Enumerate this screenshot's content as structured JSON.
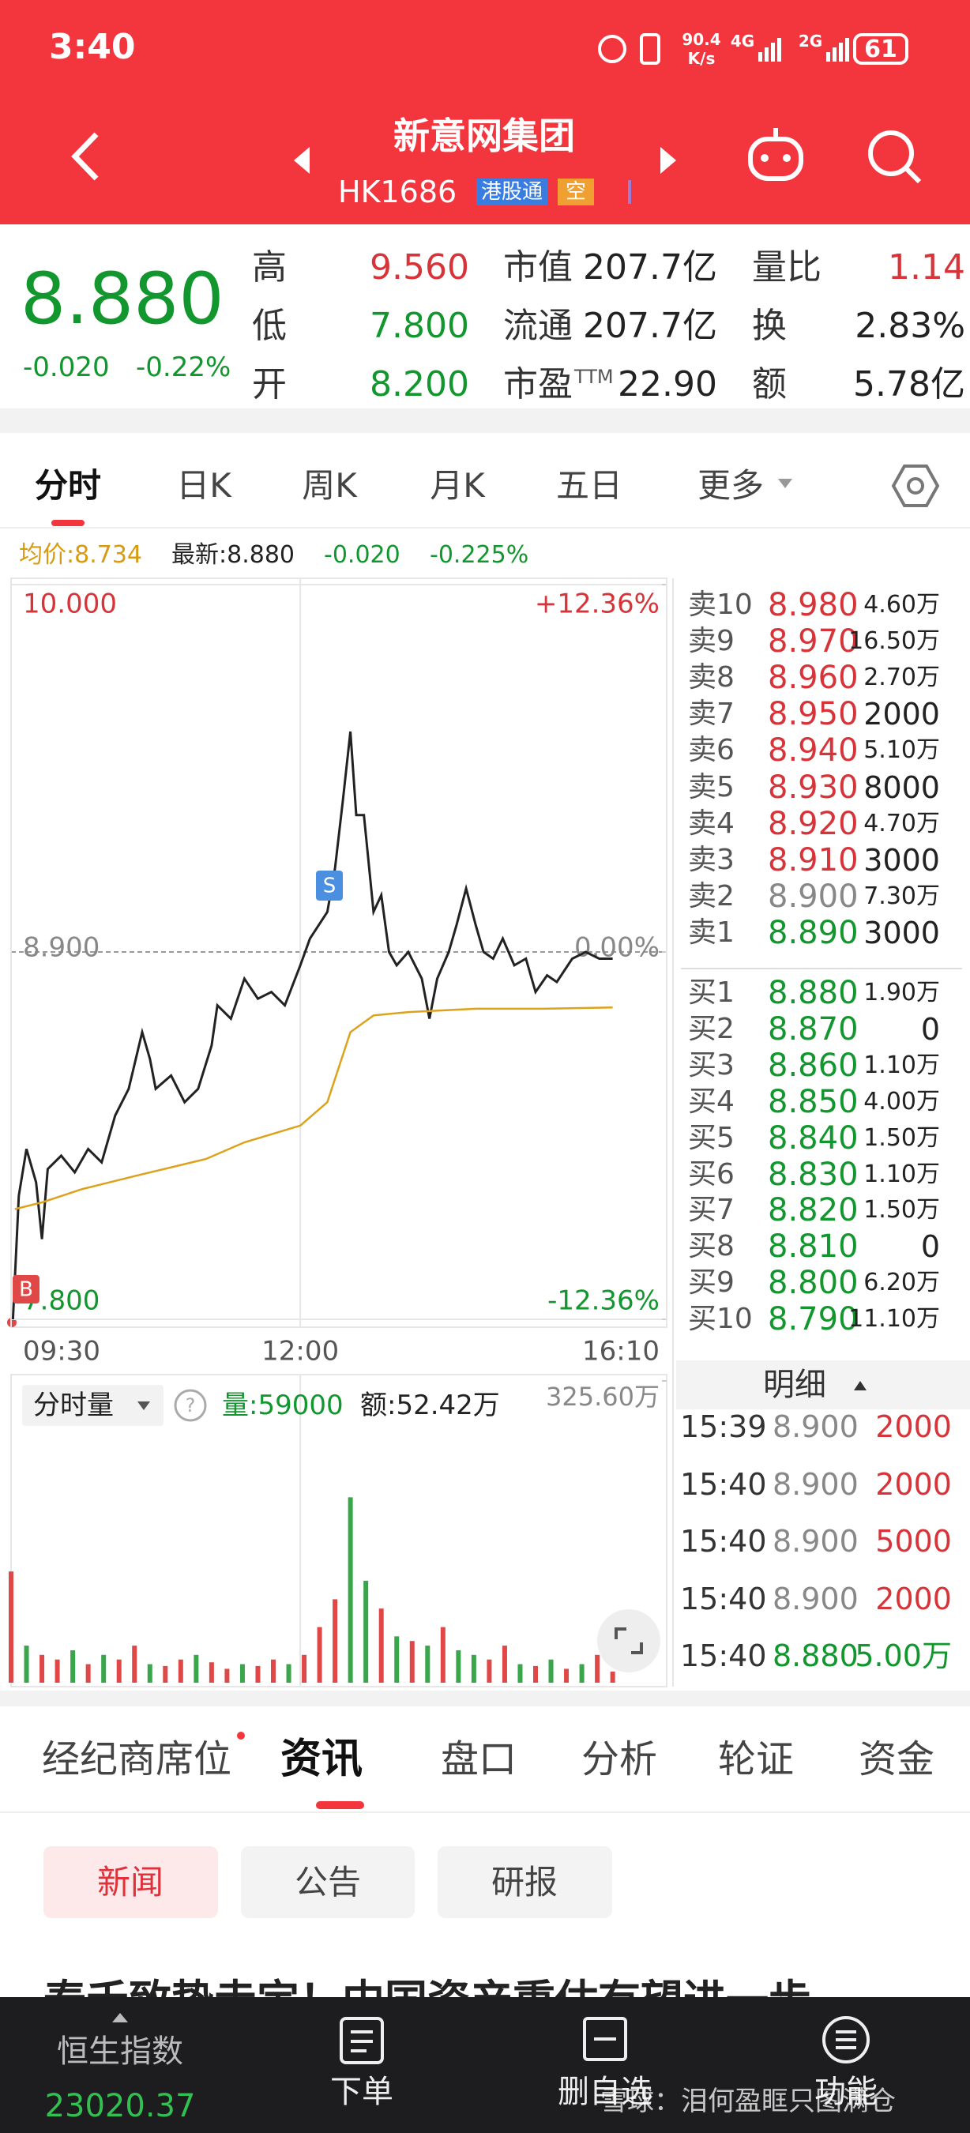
{
  "status_bar": {
    "time": "3:40",
    "net_speed": "90.4",
    "net_unit": "K/s",
    "net1": "4G",
    "net2": "2G",
    "battery": "61"
  },
  "header": {
    "title": "新意网集团",
    "code": "HK1686",
    "badges": [
      "港股通",
      "空"
    ]
  },
  "quote": {
    "price": "8.880",
    "change": "-0.020",
    "change_pct": "-0.22%",
    "stats": [
      [
        {
          "label": "高",
          "value": "9.560",
          "color": "#d7343a"
        },
        {
          "label": "市值",
          "value": "207.7亿"
        },
        {
          "label": "量比",
          "value": "1.14",
          "color": "#d7343a"
        }
      ],
      [
        {
          "label": "低",
          "value": "7.800",
          "color": "#12962e"
        },
        {
          "label": "流通",
          "value": "207.7亿"
        },
        {
          "label": "换",
          "value": "2.83%"
        }
      ],
      [
        {
          "label": "开",
          "value": "8.200",
          "color": "#12962e"
        },
        {
          "label": "市盈",
          "sup": "TTM",
          "value": "22.90"
        },
        {
          "label": "额",
          "value": "5.78亿"
        }
      ]
    ]
  },
  "chart_tabs": [
    "分时",
    "日K",
    "周K",
    "月K",
    "五日",
    "更多"
  ],
  "chart_info": {
    "avg": "均价:8.734",
    "latest": "最新:8.880",
    "change": "-0.020",
    "change_pct": "-0.225%"
  },
  "chart_data": [
    {
      "type": "line",
      "xlim": [
        0,
        340
      ],
      "xticks": [
        {
          "value": 0,
          "label": "09:30"
        },
        {
          "value": 150,
          "label": "12:00"
        },
        {
          "value": 340,
          "label": "16:10"
        }
      ],
      "ylim": [
        7.8,
        10.0
      ],
      "yticks": [
        {
          "value": 7.8,
          "label": "7.800"
        },
        {
          "value": 8.9,
          "label": "8.900"
        },
        {
          "value": 10.0,
          "label": "10.000"
        }
      ],
      "y2lim": [
        -12.36,
        12.36
      ],
      "y2ticks": [
        {
          "value": -12.36,
          "label": "-12.36%"
        },
        {
          "value": 0,
          "label": "0.00%"
        },
        {
          "value": 12.36,
          "label": "+12.36%"
        }
      ],
      "markers": [
        "S",
        "B"
      ],
      "series": [
        {
          "color": "#222222",
          "x": [
            1,
            4,
            8,
            13,
            16,
            19,
            26,
            33,
            40,
            47,
            54,
            61,
            68,
            72,
            75,
            83,
            90,
            97,
            104,
            107,
            114,
            121,
            128,
            135,
            142,
            150,
            155,
            164,
            168,
            172,
            176,
            179,
            183,
            188,
            192,
            196,
            200,
            206,
            213,
            217,
            221,
            227,
            231,
            236,
            241,
            245,
            250,
            255,
            261,
            267,
            272,
            278,
            283,
            291,
            298,
            305,
            312
          ],
          "values": [
            7.8,
            8.17,
            8.31,
            8.21,
            8.04,
            8.25,
            8.29,
            8.24,
            8.31,
            8.27,
            8.41,
            8.49,
            8.66,
            8.58,
            8.49,
            8.53,
            8.45,
            8.49,
            8.62,
            8.74,
            8.7,
            8.82,
            8.76,
            8.78,
            8.74,
            8.86,
            8.94,
            9.02,
            9.15,
            9.35,
            9.56,
            9.31,
            9.31,
            9.02,
            9.07,
            8.9,
            8.86,
            8.9,
            8.82,
            8.7,
            8.82,
            8.9,
            8.98,
            9.09,
            8.98,
            8.9,
            8.88,
            8.94,
            8.86,
            8.88,
            8.78,
            8.83,
            8.81,
            8.88,
            8.9,
            8.88,
            8.88
          ]
        },
        {
          "color": "#dda21c",
          "x": [
            2,
            16,
            37,
            65,
            101,
            121,
            150,
            164,
            176,
            188,
            206,
            241,
            276,
            312
          ],
          "values": [
            8.13,
            8.15,
            8.19,
            8.23,
            8.28,
            8.33,
            8.38,
            8.45,
            8.66,
            8.71,
            8.72,
            8.73,
            8.73,
            8.734
          ]
        }
      ]
    },
    {
      "type": "bar",
      "title": "分时量",
      "help": "?",
      "volume": "量:59000",
      "amount": "额:52.42万",
      "xlim": [
        0,
        340
      ],
      "ylim": [
        0,
        325.6
      ],
      "yticks": [
        {
          "value": 325.6,
          "label": "325.60万"
        }
      ],
      "x": [
        0,
        8,
        16,
        24,
        32,
        40,
        48,
        56,
        64,
        72,
        80,
        88,
        96,
        104,
        112,
        120,
        128,
        136,
        144,
        152,
        160,
        168,
        176,
        184,
        192,
        200,
        208,
        216,
        224,
        232,
        240,
        248,
        256,
        264,
        272,
        280,
        288,
        296,
        304,
        312
      ],
      "values": [
        120,
        40,
        30,
        25,
        35,
        20,
        30,
        25,
        40,
        20,
        18,
        25,
        30,
        22,
        15,
        20,
        18,
        25,
        20,
        30,
        60,
        90,
        200,
        110,
        80,
        50,
        45,
        40,
        60,
        35,
        30,
        25,
        40,
        20,
        18,
        25,
        15,
        20,
        30,
        12
      ],
      "colors": [
        "#e04848",
        "#3aa64c",
        "#e04848",
        "#e04848",
        "#3aa64c",
        "#e04848",
        "#3aa64c",
        "#e04848",
        "#e04848",
        "#3aa64c",
        "#e04848",
        "#e04848",
        "#3aa64c",
        "#e04848",
        "#e04848",
        "#3aa64c",
        "#e04848",
        "#e04848",
        "#3aa64c",
        "#e04848",
        "#e04848",
        "#e04848",
        "#3aa64c",
        "#3aa64c",
        "#e04848",
        "#3aa64c",
        "#e04848",
        "#3aa64c",
        "#e04848",
        "#3aa64c",
        "#3aa64c",
        "#e04848",
        "#e04848",
        "#3aa64c",
        "#e04848",
        "#3aa64c",
        "#e04848",
        "#3aa64c",
        "#e04848",
        "#e04848"
      ]
    }
  ],
  "order_book": {
    "asks": [
      {
        "label": "卖10",
        "price": "8.980",
        "volume": "4.60万"
      },
      {
        "label": "卖9",
        "price": "8.970",
        "volume": "16.50万"
      },
      {
        "label": "卖8",
        "price": "8.960",
        "volume": "2.70万"
      },
      {
        "label": "卖7",
        "price": "8.950",
        "volume": "2000"
      },
      {
        "label": "卖6",
        "price": "8.940",
        "volume": "5.10万"
      },
      {
        "label": "卖5",
        "price": "8.930",
        "volume": "8000"
      },
      {
        "label": "卖4",
        "price": "8.920",
        "volume": "4.70万"
      },
      {
        "label": "卖3",
        "price": "8.910",
        "volume": "3000"
      },
      {
        "label": "卖2",
        "price": "8.900",
        "volume": "7.30万"
      },
      {
        "label": "卖1",
        "price": "8.890",
        "volume": "3000"
      }
    ],
    "bids": [
      {
        "label": "买1",
        "price": "8.880",
        "volume": "1.90万"
      },
      {
        "label": "买2",
        "price": "8.870",
        "volume": "0"
      },
      {
        "label": "买3",
        "price": "8.860",
        "volume": "1.10万"
      },
      {
        "label": "买4",
        "price": "8.850",
        "volume": "4.00万"
      },
      {
        "label": "买5",
        "price": "8.840",
        "volume": "1.50万"
      },
      {
        "label": "买6",
        "price": "8.830",
        "volume": "1.10万"
      },
      {
        "label": "买7",
        "price": "8.820",
        "volume": "1.50万"
      },
      {
        "label": "买8",
        "price": "8.810",
        "volume": "0"
      },
      {
        "label": "买9",
        "price": "8.800",
        "volume": "6.20万"
      },
      {
        "label": "买10",
        "price": "8.790",
        "volume": "11.10万"
      }
    ]
  },
  "detail": {
    "title": "明细",
    "rows": [
      {
        "time": "15:39",
        "price": "8.900",
        "volume": "2000"
      },
      {
        "time": "15:40",
        "price": "8.900",
        "volume": "2000"
      },
      {
        "time": "15:40",
        "price": "8.900",
        "volume": "5000"
      },
      {
        "time": "15:40",
        "price": "8.900",
        "volume": "2000"
      },
      {
        "time": "15:40",
        "price": "8.880",
        "volume": "5.00万"
      }
    ]
  },
  "info_tabs": [
    "经纪商席位",
    "资讯",
    "盘口",
    "分析",
    "轮证",
    "资金"
  ],
  "news_tabs": [
    "新闻",
    "公告",
    "研报"
  ],
  "headline": "泰禾致势走定！中国资产重估有望进一步",
  "bottom_nav": {
    "index_name": "恒生指数",
    "index_value": "23020.37",
    "items": [
      "下单",
      "删自选",
      "功能"
    ]
  },
  "watermark": "雪球：泪何盈眶只图满仓"
}
